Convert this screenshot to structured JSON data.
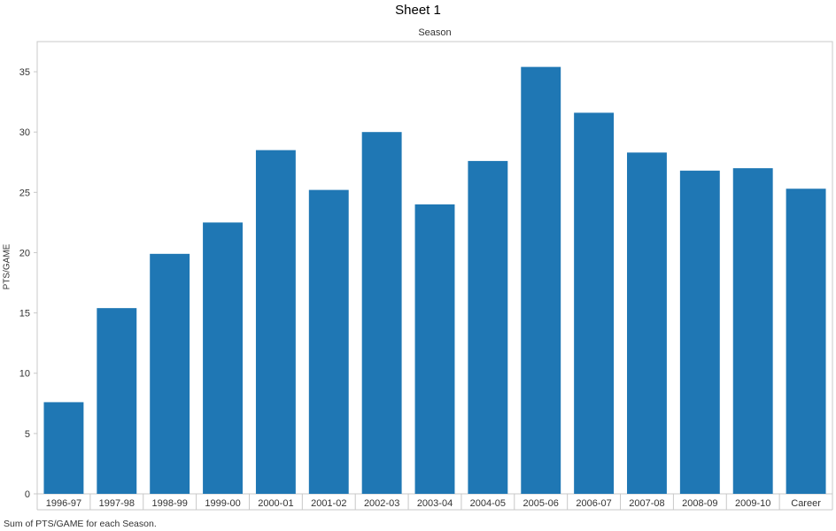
{
  "sheet": {
    "title": "Sheet 1",
    "caption": "Sum of PTS/GAME for each Season."
  },
  "chart_data": {
    "type": "bar",
    "title": "Sheet 1",
    "column_header": "Season",
    "xlabel": "",
    "ylabel": "PTS/GAME",
    "categories": [
      "1996-97",
      "1997-98",
      "1998-99",
      "1999-00",
      "2000-01",
      "2001-02",
      "2002-03",
      "2003-04",
      "2004-05",
      "2005-06",
      "2006-07",
      "2007-08",
      "2008-09",
      "2009-10",
      "Career"
    ],
    "values": [
      7.6,
      15.4,
      19.9,
      22.5,
      28.5,
      25.2,
      30.0,
      24.0,
      27.6,
      35.4,
      31.6,
      28.3,
      26.8,
      27.0,
      25.3
    ],
    "ylim": [
      0,
      37.5
    ],
    "yticks": [
      0,
      5,
      10,
      15,
      20,
      25,
      30,
      35
    ],
    "grid": false,
    "bar_color": "#1f77b4",
    "frame_color": "#c8c8c8"
  }
}
